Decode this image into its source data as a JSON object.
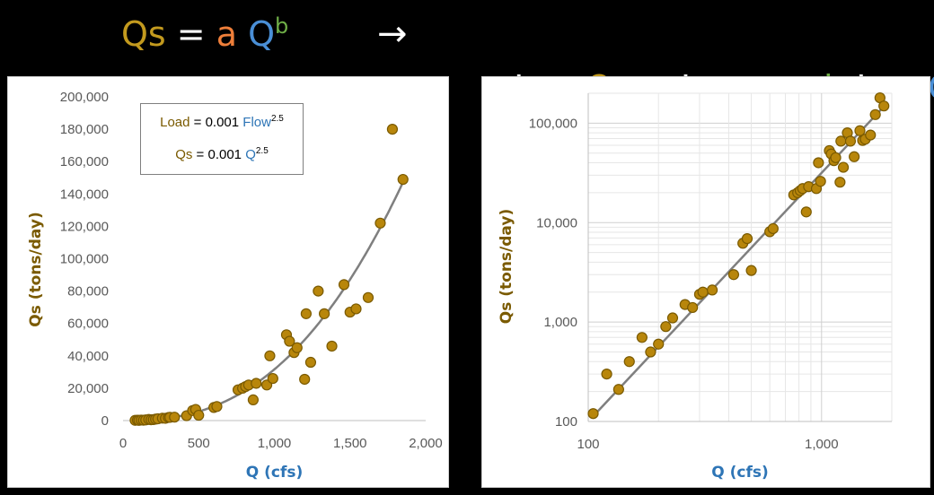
{
  "header": {
    "left": {
      "qs": "Qs",
      "eq": " = ",
      "a": "a",
      "q": "Q",
      "b": "b"
    },
    "arrow": "→",
    "right": {
      "log1": "Log ",
      "qs": "Qs",
      "eq": " = Log ",
      "a": "a",
      "plus": " + ",
      "b": "b",
      "log2": " Log ",
      "q": "Q"
    }
  },
  "colors": {
    "gold": "#c39a1e",
    "orange": "#ef7f3a",
    "blue": "#4a8fd6",
    "green": "#6fae47",
    "marker_fill": "#b8860b",
    "marker_edge": "#7a5a00",
    "fit_line": "#7f7f7f"
  },
  "equations": {
    "line1": {
      "name": "Load",
      "eq": " = 0.001 ",
      "var": "Flow",
      "exp": "2.5"
    },
    "line2": {
      "name": "Qs",
      "eq": " = 0.001 ",
      "var": "Q",
      "exp": "2.5"
    }
  },
  "chart_data": [
    {
      "type": "scatter",
      "xlabel": "Q (cfs)",
      "ylabel": "Qs (tons/day)",
      "xlim": [
        0,
        2000
      ],
      "ylim": [
        0,
        200000
      ],
      "x_ticks": [
        "0",
        "500",
        "1,000",
        "1,500",
        "2,000"
      ],
      "y_ticks": [
        "0",
        "20,000",
        "40,000",
        "60,000",
        "80,000",
        "100,000",
        "120,000",
        "140,000",
        "160,000",
        "180,000",
        "200,000"
      ],
      "fit": {
        "a": 0.001,
        "b": 2.5
      },
      "grid": false
    },
    {
      "type": "scatter",
      "xlabel": "Q (cfs)",
      "ylabel": "Qs (tons/day)",
      "x_scale": "log",
      "y_scale": "log",
      "xlim": [
        100,
        2000
      ],
      "ylim": [
        100,
        200000
      ],
      "x_ticks": [
        "100",
        "1,000"
      ],
      "y_ticks": [
        "100",
        "1,000",
        "10,000",
        "100,000"
      ],
      "fit": {
        "a": 0.001,
        "b": 2.5
      },
      "grid": true
    }
  ],
  "points": [
    [
      80,
      150
    ],
    [
      95,
      250
    ],
    [
      105,
      120
    ],
    [
      120,
      300
    ],
    [
      135,
      210
    ],
    [
      150,
      400
    ],
    [
      170,
      700
    ],
    [
      185,
      500
    ],
    [
      200,
      600
    ],
    [
      215,
      900
    ],
    [
      230,
      1100
    ],
    [
      260,
      1500
    ],
    [
      280,
      1400
    ],
    [
      300,
      1900
    ],
    [
      310,
      2000
    ],
    [
      340,
      2100
    ],
    [
      420,
      3000
    ],
    [
      460,
      6200
    ],
    [
      480,
      6900
    ],
    [
      500,
      3300
    ],
    [
      600,
      8100
    ],
    [
      620,
      8700
    ],
    [
      760,
      19000
    ],
    [
      790,
      20000
    ],
    [
      810,
      21000
    ],
    [
      830,
      22000
    ],
    [
      860,
      12800
    ],
    [
      880,
      23000
    ],
    [
      950,
      22000
    ],
    [
      970,
      40000
    ],
    [
      990,
      26000
    ],
    [
      1080,
      53000
    ],
    [
      1100,
      49000
    ],
    [
      1130,
      42000
    ],
    [
      1150,
      45000
    ],
    [
      1200,
      25500
    ],
    [
      1210,
      66000
    ],
    [
      1240,
      36000
    ],
    [
      1290,
      80000
    ],
    [
      1330,
      66000
    ],
    [
      1380,
      46000
    ],
    [
      1460,
      84000
    ],
    [
      1500,
      67000
    ],
    [
      1540,
      69000
    ],
    [
      1620,
      76000
    ],
    [
      1700,
      122000
    ],
    [
      1780,
      180000
    ],
    [
      1850,
      149000
    ]
  ]
}
